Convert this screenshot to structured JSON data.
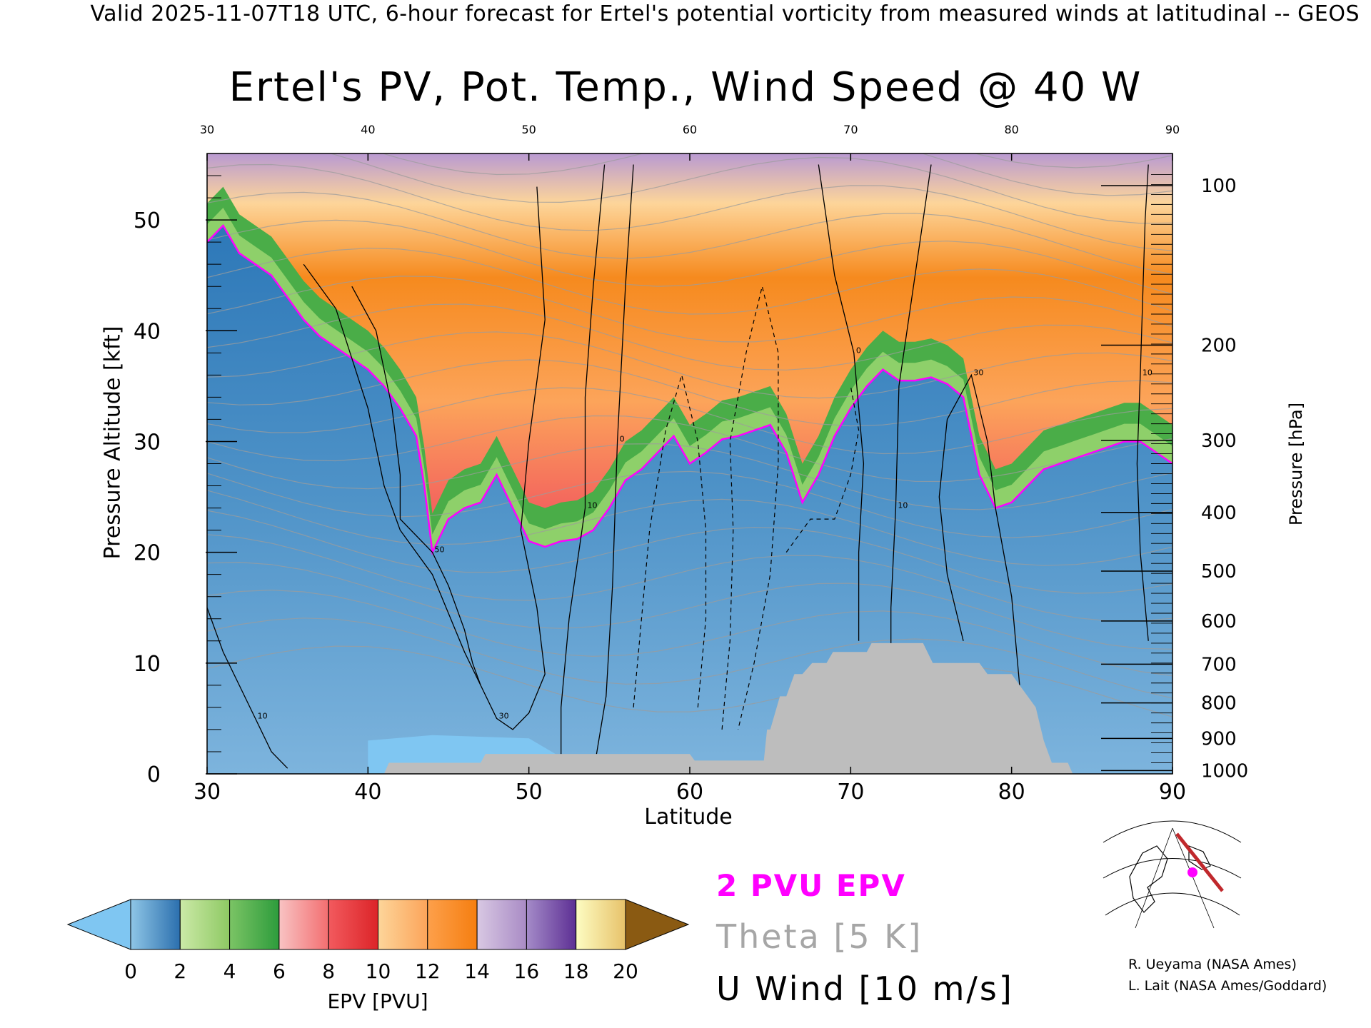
{
  "page": {
    "top_caption": "Valid 2025-11-07T18 UTC, 6-hour forecast for Ertel's potential vorticity from measured winds at latitudinal -- GEOS",
    "credits": [
      "R. Ueyama (NASA Ames)",
      "L. Lait (NASA Ames/Goddard)"
    ]
  },
  "legend": {
    "epv_label": "2 PVU EPV",
    "theta_label": "Theta [5 K]",
    "uwind_label": "U Wind [10 m/s]",
    "epv_color": "#ff00ff",
    "theta_color": "#a6a6a6"
  },
  "colorbar": {
    "label": "EPV [PVU]",
    "ticks": [
      "0",
      "2",
      "4",
      "6",
      "8",
      "10",
      "12",
      "14",
      "16",
      "18",
      "20"
    ],
    "segments": [
      {
        "from": 0,
        "to": 2,
        "colors": [
          "#8fc6e6",
          "#2b6fae"
        ]
      },
      {
        "from": 2,
        "to": 4,
        "colors": [
          "#cbe9a7",
          "#8ec963"
        ]
      },
      {
        "from": 4,
        "to": 6,
        "colors": [
          "#7bc465",
          "#2d9c3c"
        ]
      },
      {
        "from": 6,
        "to": 8,
        "colors": [
          "#f8c3c3",
          "#f36e70"
        ]
      },
      {
        "from": 8,
        "to": 10,
        "colors": [
          "#f25a5e",
          "#dc2428"
        ]
      },
      {
        "from": 10,
        "to": 12,
        "colors": [
          "#fdd59a",
          "#fca45a"
        ]
      },
      {
        "from": 12,
        "to": 14,
        "colors": [
          "#fda04b",
          "#f57e10"
        ]
      },
      {
        "from": 14,
        "to": 16,
        "colors": [
          "#d8c8e3",
          "#a98bc5"
        ]
      },
      {
        "from": 16,
        "to": 18,
        "colors": [
          "#a48bc8",
          "#5d2f94"
        ]
      },
      {
        "from": 18,
        "to": 20,
        "colors": [
          "#fdfcc2",
          "#e7c26a"
        ]
      }
    ],
    "under_color": "#7fc6f2",
    "over_color": "#8a5a12"
  },
  "chart_data": {
    "type": "heatmap",
    "title": "Ertel's PV, Pot. Temp., Wind Speed @ 40 W",
    "xlabel": "Latitude",
    "ylabel": "Pressure Altitude [kft]",
    "y2label": "Pressure [hPa]",
    "xlim": [
      30,
      90
    ],
    "ylim": [
      0,
      56
    ],
    "x_ticks": [
      "30",
      "40",
      "50",
      "60",
      "70",
      "80",
      "90"
    ],
    "top_x_ticks": [
      "30",
      "40",
      "50",
      "60",
      "70",
      "80",
      "90"
    ],
    "y_ticks": [
      "0",
      "10",
      "20",
      "30",
      "40",
      "50"
    ],
    "pressure_ticks": [
      {
        "label": "100",
        "kft": 53.1
      },
      {
        "label": "200",
        "kft": 38.7
      },
      {
        "label": "300",
        "kft": 30.1
      },
      {
        "label": "400",
        "kft": 23.6
      },
      {
        "label": "500",
        "kft": 18.3
      },
      {
        "label": "600",
        "kft": 13.8
      },
      {
        "label": "700",
        "kft": 9.9
      },
      {
        "label": "800",
        "kft": 6.4
      },
      {
        "label": "900",
        "kft": 3.2
      },
      {
        "label": "1000",
        "kft": 0.3
      }
    ],
    "tropopause_2pvu_kft": [
      [
        30,
        48
      ],
      [
        31,
        49.5
      ],
      [
        32,
        47
      ],
      [
        33,
        46
      ],
      [
        34,
        45
      ],
      [
        35,
        43
      ],
      [
        36,
        41
      ],
      [
        37,
        39.5
      ],
      [
        38,
        38.5
      ],
      [
        39,
        37.5
      ],
      [
        40,
        36.5
      ],
      [
        41,
        35
      ],
      [
        42,
        33
      ],
      [
        43,
        30.5
      ],
      [
        43.5,
        26
      ],
      [
        44,
        20
      ],
      [
        45,
        23
      ],
      [
        46,
        24
      ],
      [
        47,
        24.5
      ],
      [
        48,
        27
      ],
      [
        49,
        24
      ],
      [
        50,
        21
      ],
      [
        51,
        20.5
      ],
      [
        52,
        21
      ],
      [
        53,
        21.2
      ],
      [
        54,
        22
      ],
      [
        55,
        24
      ],
      [
        56,
        26.5
      ],
      [
        57,
        27.5
      ],
      [
        58,
        29
      ],
      [
        59,
        30.5
      ],
      [
        60,
        28
      ],
      [
        61,
        29
      ],
      [
        62,
        30.2
      ],
      [
        63,
        30.5
      ],
      [
        64,
        31
      ],
      [
        65,
        31.5
      ],
      [
        66,
        29
      ],
      [
        67,
        24.5
      ],
      [
        68,
        27
      ],
      [
        69,
        30.5
      ],
      [
        70,
        33
      ],
      [
        71,
        35
      ],
      [
        72,
        36.5
      ],
      [
        73,
        35.5
      ],
      [
        74,
        35.5
      ],
      [
        75,
        35.8
      ],
      [
        76,
        35.2
      ],
      [
        77,
        34
      ],
      [
        78,
        27
      ],
      [
        79,
        24
      ],
      [
        80,
        24.5
      ],
      [
        81,
        26
      ],
      [
        82,
        27.5
      ],
      [
        83,
        28
      ],
      [
        84,
        28.5
      ],
      [
        85,
        29
      ],
      [
        86,
        29.5
      ],
      [
        87,
        30
      ],
      [
        88,
        30
      ],
      [
        89,
        29
      ],
      [
        90,
        28
      ]
    ],
    "terrain_kft": [
      [
        30,
        0
      ],
      [
        41,
        0
      ],
      [
        41.3,
        1
      ],
      [
        47,
        1
      ],
      [
        47.3,
        1.8
      ],
      [
        60,
        1.8
      ],
      [
        60.3,
        1.2
      ],
      [
        64.6,
        1.2
      ],
      [
        64.8,
        4
      ],
      [
        65,
        4
      ],
      [
        65.6,
        7
      ],
      [
        66,
        7
      ],
      [
        66.5,
        9
      ],
      [
        67,
        9
      ],
      [
        67.6,
        10
      ],
      [
        68.5,
        10
      ],
      [
        68.9,
        11
      ],
      [
        71,
        11
      ],
      [
        71.3,
        11.8
      ],
      [
        74.5,
        11.8
      ],
      [
        75.1,
        10
      ],
      [
        78,
        10
      ],
      [
        78.5,
        9
      ],
      [
        80,
        9
      ],
      [
        80.5,
        8
      ],
      [
        81,
        7
      ],
      [
        81.5,
        6
      ],
      [
        82,
        3
      ],
      [
        82.5,
        1
      ],
      [
        83.5,
        1
      ],
      [
        83.8,
        0
      ],
      [
        90,
        0
      ]
    ],
    "u_wind_contours": [
      {
        "value": "10",
        "points": [
          [
            30,
            15
          ],
          [
            31,
            11
          ],
          [
            32,
            8
          ],
          [
            33,
            5
          ],
          [
            34,
            2
          ],
          [
            35,
            0.5
          ]
        ]
      },
      {
        "value": "30",
        "points": [
          [
            36,
            46
          ],
          [
            38,
            42
          ],
          [
            40,
            33
          ],
          [
            41,
            26
          ],
          [
            42,
            22
          ],
          [
            44,
            18
          ],
          [
            46,
            11
          ],
          [
            47,
            8
          ],
          [
            48,
            5
          ],
          [
            49,
            4
          ],
          [
            50,
            5.5
          ],
          [
            51,
            9
          ],
          [
            50.5,
            15
          ],
          [
            49.5,
            22
          ],
          [
            50,
            30
          ],
          [
            51,
            41
          ],
          [
            50.5,
            53
          ]
        ]
      },
      {
        "value": "50",
        "points": [
          [
            39,
            44
          ],
          [
            40.5,
            40
          ],
          [
            41.5,
            33
          ],
          [
            42,
            27
          ],
          [
            42,
            23
          ],
          [
            44,
            20
          ],
          [
            45,
            17
          ],
          [
            46,
            13
          ],
          [
            46.5,
            10
          ],
          [
            47,
            8
          ]
        ]
      },
      {
        "value": "10",
        "points": [
          [
            52,
            0
          ],
          [
            52,
            6
          ],
          [
            52.5,
            14
          ],
          [
            53.5,
            24
          ],
          [
            53.5,
            34
          ],
          [
            54,
            44
          ],
          [
            54.7,
            55
          ]
        ]
      },
      {
        "value": "0",
        "points": [
          [
            54,
            0
          ],
          [
            54.8,
            7
          ],
          [
            55.2,
            17
          ],
          [
            55.5,
            30
          ],
          [
            56,
            44
          ],
          [
            56.5,
            55
          ]
        ]
      },
      {
        "value": "10",
        "points": [
          [
            73,
            0
          ],
          [
            72.5,
            8
          ],
          [
            72.5,
            15
          ],
          [
            72.8,
            24
          ],
          [
            73,
            35
          ],
          [
            74,
            45
          ],
          [
            75,
            55
          ]
        ]
      },
      {
        "value": "0",
        "points": [
          [
            70.5,
            12
          ],
          [
            70.5,
            20
          ],
          [
            70.8,
            28
          ],
          [
            70.2,
            38
          ],
          [
            69,
            45
          ],
          [
            68,
            55
          ]
        ]
      },
      {
        "value": "30",
        "points": [
          [
            77,
            12
          ],
          [
            76,
            18
          ],
          [
            75.5,
            25
          ],
          [
            76,
            32
          ],
          [
            77.5,
            36
          ],
          [
            78.5,
            30
          ],
          [
            79,
            24
          ],
          [
            80,
            16
          ],
          [
            80.5,
            8
          ]
        ]
      },
      {
        "value": "10",
        "points": [
          [
            88.5,
            12
          ],
          [
            88,
            20
          ],
          [
            87.8,
            28
          ],
          [
            88,
            36
          ],
          [
            88.3,
            50
          ],
          [
            88.5,
            55
          ]
        ]
      }
    ],
    "dashed_contours": [
      {
        "value": "-10",
        "points": [
          [
            56.5,
            6
          ],
          [
            57,
            14
          ],
          [
            57.5,
            22
          ],
          [
            58.5,
            31
          ],
          [
            59.5,
            36
          ],
          [
            60.5,
            30
          ],
          [
            61,
            22
          ],
          [
            61,
            14
          ],
          [
            60.5,
            6
          ]
        ]
      },
      {
        "value": "-10",
        "points": [
          [
            62,
            4
          ],
          [
            62.5,
            12
          ],
          [
            62.7,
            22
          ],
          [
            62.5,
            30
          ],
          [
            63.5,
            38
          ],
          [
            64.5,
            44
          ],
          [
            65.5,
            38
          ],
          [
            65.5,
            28
          ],
          [
            65,
            18
          ],
          [
            64,
            10
          ],
          [
            63,
            4
          ]
        ]
      },
      {
        "value": "-10",
        "points": [
          [
            66,
            20
          ],
          [
            67.5,
            23
          ],
          [
            69,
            23
          ],
          [
            70,
            27
          ],
          [
            70.5,
            31
          ],
          [
            70,
            35
          ]
        ]
      }
    ],
    "theta_isentropes_K": [
      "290",
      "300",
      "310",
      "340",
      "350",
      "360",
      "370",
      "380",
      "390",
      "400",
      "420"
    ]
  }
}
